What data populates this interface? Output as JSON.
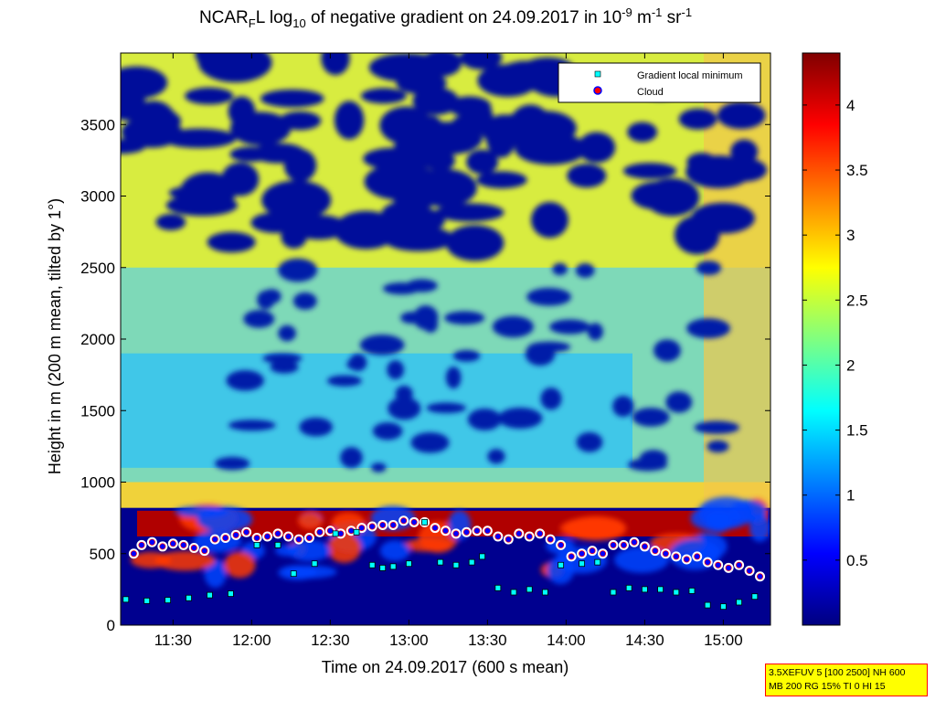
{
  "title": {
    "prefix": "NCAR",
    "sub1": "F",
    "middle": "L log",
    "sub2": "10",
    "text": " of negative gradient on 24.09.2017 in 10",
    "exp1": "-9",
    "unit1": " m",
    "exp2": "-1",
    "unit2": " sr",
    "exp3": "-1"
  },
  "info_box": {
    "line1": "3.5XEFUV 5 [100 2500] NH 600",
    "line2": "MB 200 RG 15% TI 0 HI 15"
  },
  "chart_data": {
    "type": "heatmap",
    "xlabel": "Time on 24.09.2017 (600 s mean)",
    "ylabel": "Height in m (200 m mean, tilted by 1°)",
    "x_ticks": [
      "11:30",
      "12:00",
      "12:30",
      "13:00",
      "13:30",
      "14:00",
      "14:30",
      "15:00"
    ],
    "x_tick_minutes": [
      690,
      720,
      750,
      780,
      810,
      840,
      870,
      900
    ],
    "xlim_minutes": [
      670,
      918
    ],
    "y_ticks": [
      0,
      500,
      1000,
      1500,
      2000,
      2500,
      3000,
      3500
    ],
    "ylim": [
      0,
      4000
    ],
    "colorbar": {
      "ticks": [
        0.5,
        1,
        1.5,
        2,
        2.5,
        3,
        3.5,
        4
      ],
      "range": [
        0,
        4.4
      ],
      "colormap": "jet"
    },
    "legend": {
      "placement": "top-right",
      "entries": [
        {
          "label": "Gradient local minimum",
          "marker": "square",
          "color": "#00ffff"
        },
        {
          "label": "Cloud",
          "marker": "circle",
          "color": "#ff0000",
          "edge": "#0000ff"
        }
      ]
    },
    "boundary_layer_top_m": 800,
    "gradient_local_minimum": {
      "x_minutes": [
        672,
        680,
        688,
        696,
        704,
        712,
        722,
        730,
        736,
        744,
        752,
        760,
        766,
        770,
        774,
        780,
        786,
        792,
        798,
        804,
        808,
        814,
        820,
        826,
        832,
        838,
        846,
        852,
        858,
        864,
        870,
        876,
        882,
        888,
        894,
        900,
        906,
        912
      ],
      "y_m": [
        180,
        170,
        175,
        190,
        210,
        220,
        560,
        560,
        360,
        430,
        640,
        650,
        420,
        400,
        410,
        430,
        720,
        440,
        420,
        440,
        480,
        260,
        230,
        250,
        230,
        420,
        430,
        440,
        230,
        260,
        250,
        250,
        230,
        240,
        140,
        130,
        160,
        200
      ]
    },
    "cloud": {
      "x_minutes": [
        675,
        678,
        682,
        686,
        690,
        694,
        698,
        702,
        706,
        710,
        714,
        718,
        722,
        726,
        730,
        734,
        738,
        742,
        746,
        750,
        754,
        758,
        762,
        766,
        770,
        774,
        778,
        782,
        786,
        790,
        794,
        798,
        802,
        806,
        810,
        814,
        818,
        822,
        826,
        830,
        834,
        838,
        842,
        846,
        850,
        854,
        858,
        862,
        866,
        870,
        874,
        878,
        882,
        886,
        890,
        894,
        898,
        902,
        906,
        910,
        914
      ],
      "y_m": [
        500,
        560,
        580,
        550,
        570,
        560,
        540,
        520,
        600,
        610,
        630,
        650,
        610,
        620,
        640,
        620,
        600,
        610,
        650,
        660,
        640,
        660,
        680,
        690,
        700,
        700,
        730,
        720,
        720,
        680,
        660,
        640,
        650,
        660,
        660,
        620,
        600,
        640,
        620,
        640,
        600,
        560,
        480,
        500,
        520,
        500,
        560,
        560,
        580,
        550,
        520,
        500,
        480,
        460,
        480,
        440,
        420,
        400,
        420,
        380,
        340
      ]
    }
  }
}
